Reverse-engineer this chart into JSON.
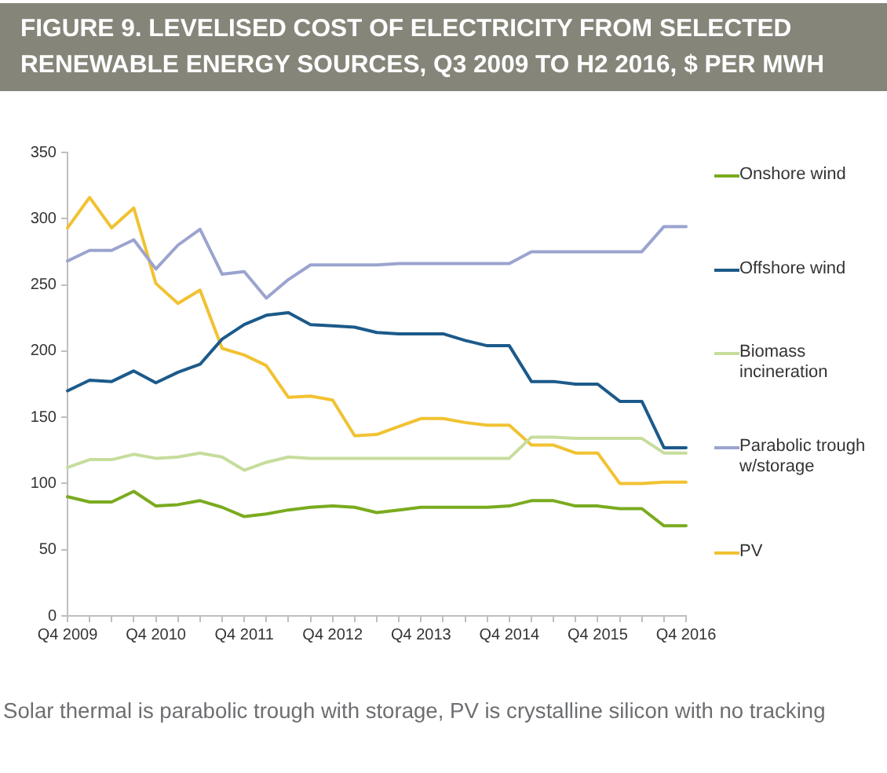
{
  "chart_data": {
    "type": "line",
    "title": "FIGURE 9. LEVELISED COST OF ELECTRICITY FROM SELECTED RENEWABLE ENERGY SOURCES, Q3 2009 TO H2 2016, $ PER MWH",
    "annotations": [
      "Solar thermal is parabolic trough with storage, PV is crystalline silicon with no tracking"
    ],
    "categories": [
      "Q4 2009",
      null,
      null,
      null,
      "Q4 2010",
      null,
      null,
      null,
      "Q4 2011",
      null,
      null,
      null,
      "Q4 2012",
      null,
      null,
      null,
      "Q4 2013",
      null,
      null,
      null,
      "Q4 2014",
      null,
      null,
      null,
      "Q4 2015",
      null,
      null,
      null,
      "Q4 2016"
    ],
    "series": [
      {
        "name": "Onshore wind",
        "color": "#7aab1f",
        "values": [
          90,
          86,
          86,
          94,
          83,
          84,
          87,
          82,
          75,
          77,
          80,
          82,
          83,
          82,
          78,
          80,
          82,
          82,
          82,
          82,
          83,
          87,
          87,
          83,
          83,
          81,
          81,
          68,
          68
        ]
      },
      {
        "name": "Offshore wind",
        "color": "#1c5a8a",
        "values": [
          170,
          178,
          177,
          185,
          176,
          184,
          190,
          209,
          220,
          227,
          229,
          220,
          219,
          218,
          214,
          213,
          213,
          213,
          208,
          204,
          204,
          177,
          177,
          175,
          175,
          162,
          162,
          127,
          127
        ]
      },
      {
        "name": "Biomass incineration",
        "color": "#c6dd9c",
        "values": [
          112,
          118,
          118,
          122,
          119,
          120,
          123,
          120,
          110,
          116,
          120,
          119,
          119,
          119,
          119,
          119,
          119,
          119,
          119,
          119,
          119,
          135,
          135,
          134,
          134,
          134,
          134,
          123,
          123
        ]
      },
      {
        "name": "Parabolic trough w/storage",
        "color": "#9ba4cf",
        "values": [
          268,
          276,
          276,
          284,
          262,
          280,
          292,
          258,
          260,
          240,
          254,
          265,
          265,
          265,
          265,
          266,
          266,
          266,
          266,
          266,
          266,
          275,
          275,
          275,
          275,
          275,
          275,
          294,
          294
        ]
      },
      {
        "name": "PV",
        "color": "#f1c232",
        "values": [
          293,
          316,
          293,
          308,
          251,
          236,
          246,
          202,
          197,
          189,
          165,
          166,
          163,
          136,
          137,
          143,
          149,
          149,
          146,
          144,
          144,
          129,
          129,
          123,
          123,
          100,
          100,
          101,
          101
        ]
      }
    ],
    "ylim": [
      0,
      350
    ],
    "yticks": [
      0,
      50,
      100,
      150,
      200,
      250,
      300,
      350
    ],
    "grid": false,
    "legend": "right",
    "marker": "none",
    "line_style": "solid"
  }
}
